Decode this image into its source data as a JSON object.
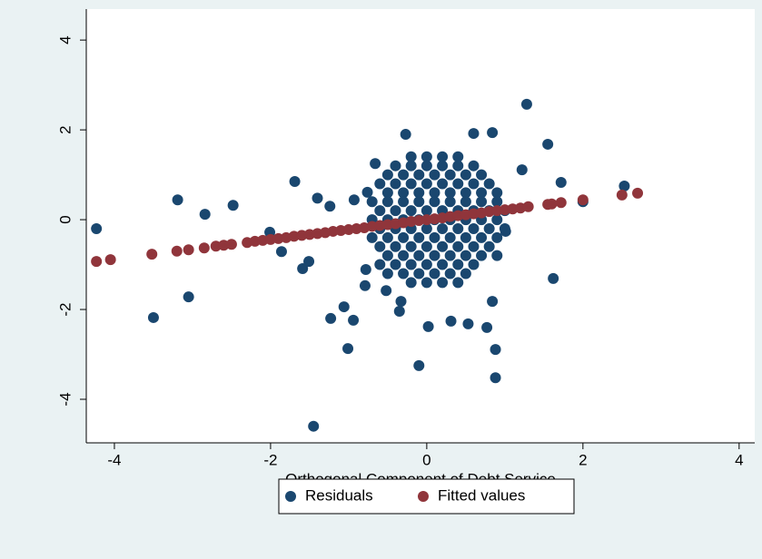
{
  "chart_data": {
    "type": "scatter",
    "x_label": "Orthogonal Component of Debt Service",
    "xlim": [
      -4.36,
      4.2
    ],
    "ylim": [
      -4.97,
      4.69
    ],
    "xticks": [
      -4,
      -2,
      0,
      2,
      4
    ],
    "yticks": [
      -4,
      -2,
      0,
      2,
      4
    ],
    "grid": false,
    "legend": "bottom",
    "series": [
      {
        "name": "Residuals",
        "color": "#1a476f",
        "x": [
          -4.23,
          -3.19,
          -2.84,
          -3.5,
          -3.05,
          -2.48,
          -1.69,
          -2.01,
          -1.86,
          -1.59,
          -1.45,
          -1.23,
          -1.01,
          -0.94,
          -1.06,
          -1.4,
          -1.24,
          -1.51,
          -0.1,
          1.28,
          0.84,
          1.55,
          2.53,
          1.62,
          0.88,
          0.88,
          0.84,
          0.31,
          0.02,
          0.53,
          0.77,
          2.0,
          1.72,
          1.22,
          0.6,
          -0.27,
          -0.66,
          1.01,
          -0.35,
          -0.33,
          -0.78,
          -0.79,
          -0.52,
          -0.76,
          -0.93,
          -0.2,
          0,
          0.2,
          0.4,
          -0.4,
          -0.2,
          0,
          0.2,
          0.4,
          0.6,
          -0.5,
          -0.3,
          -0.1,
          0.1,
          0.3,
          0.5,
          0.7,
          -0.6,
          -0.4,
          -0.2,
          0,
          0.2,
          0.4,
          0.6,
          0.8,
          -0.5,
          -0.3,
          -0.1,
          0.1,
          0.3,
          0.5,
          0.7,
          0.9,
          -0.7,
          -0.5,
          -0.3,
          -0.1,
          0.1,
          0.3,
          0.5,
          0.7,
          0.9,
          -0.6,
          -0.4,
          -0.2,
          0,
          0.2,
          0.4,
          0.6,
          0.8,
          1.0,
          -0.7,
          -0.5,
          -0.3,
          -0.1,
          0.1,
          0.3,
          0.5,
          0.7,
          0.9,
          -0.6,
          -0.4,
          -0.2,
          0,
          0.2,
          0.4,
          0.6,
          0.8,
          1.0,
          -0.7,
          -0.5,
          -0.3,
          -0.1,
          0.1,
          0.3,
          0.5,
          0.7,
          0.9,
          -0.6,
          -0.4,
          -0.2,
          0,
          0.2,
          0.4,
          0.6,
          0.8,
          -0.5,
          -0.3,
          -0.1,
          0.1,
          0.3,
          0.5,
          0.7,
          0.9,
          -0.6,
          -0.4,
          -0.2,
          0,
          0.2,
          0.4,
          0.6,
          -0.5,
          -0.3,
          -0.1,
          0.1,
          0.3,
          0.5,
          -0.2,
          0,
          0.2,
          0.4
        ],
        "values": [
          -0.2,
          0.44,
          0.12,
          -2.18,
          -1.72,
          0.32,
          0.85,
          -0.28,
          -0.71,
          -1.09,
          -4.6,
          -2.2,
          -2.87,
          -2.24,
          -1.94,
          0.48,
          0.3,
          -0.93,
          -3.25,
          2.57,
          1.94,
          1.68,
          0.75,
          -1.31,
          -3.52,
          -2.89,
          -1.82,
          -2.26,
          -2.38,
          -2.32,
          -2.4,
          0.4,
          0.83,
          1.11,
          1.92,
          1.9,
          1.25,
          -0.26,
          -2.04,
          -1.82,
          -1.11,
          -1.47,
          -1.58,
          0.61,
          0.44,
          1.4,
          1.4,
          1.4,
          1.4,
          1.2,
          1.2,
          1.2,
          1.2,
          1.2,
          1.2,
          1.0,
          1.0,
          1.0,
          1.0,
          1.0,
          1.0,
          1.0,
          0.8,
          0.8,
          0.8,
          0.8,
          0.8,
          0.8,
          0.8,
          0.8,
          0.6,
          0.6,
          0.6,
          0.6,
          0.6,
          0.6,
          0.6,
          0.6,
          0.4,
          0.4,
          0.4,
          0.4,
          0.4,
          0.4,
          0.4,
          0.4,
          0.4,
          0.2,
          0.2,
          0.2,
          0.2,
          0.2,
          0.2,
          0.2,
          0.2,
          0.2,
          0,
          0,
          0,
          0,
          0,
          0,
          0,
          0,
          0,
          -0.2,
          -0.2,
          -0.2,
          -0.2,
          -0.2,
          -0.2,
          -0.2,
          -0.2,
          -0.2,
          -0.4,
          -0.4,
          -0.4,
          -0.4,
          -0.4,
          -0.4,
          -0.4,
          -0.4,
          -0.4,
          -0.6,
          -0.6,
          -0.6,
          -0.6,
          -0.6,
          -0.6,
          -0.6,
          -0.6,
          -0.8,
          -0.8,
          -0.8,
          -0.8,
          -0.8,
          -0.8,
          -0.8,
          -0.8,
          -1.0,
          -1.0,
          -1.0,
          -1.0,
          -1.0,
          -1.0,
          -1.0,
          -1.2,
          -1.2,
          -1.2,
          -1.2,
          -1.2,
          -1.2,
          -1.4,
          -1.4,
          -1.4,
          -1.4
        ]
      },
      {
        "name": "Fitted values",
        "color": "#90353b",
        "x": [
          -4.23,
          -4.05,
          -3.52,
          -3.2,
          -3.05,
          -2.85,
          -2.7,
          -2.6,
          -2.5,
          -2.3,
          -2.2,
          -2.1,
          -2.0,
          -1.9,
          -1.8,
          -1.7,
          -1.6,
          -1.5,
          -1.4,
          -1.3,
          -1.2,
          -1.1,
          -1.0,
          -0.9,
          -0.8,
          -0.7,
          -0.6,
          -0.5,
          -0.4,
          -0.3,
          -0.2,
          -0.1,
          0,
          0.1,
          0.2,
          0.3,
          0.4,
          0.5,
          0.6,
          0.7,
          0.8,
          0.9,
          1.0,
          1.1,
          1.2,
          1.3,
          1.55,
          1.6,
          1.72,
          2.0,
          2.5,
          2.7
        ],
        "values": [
          -0.93,
          -0.89,
          -0.77,
          -0.7,
          -0.67,
          -0.63,
          -0.59,
          -0.57,
          -0.55,
          -0.51,
          -0.48,
          -0.46,
          -0.44,
          -0.42,
          -0.4,
          -0.37,
          -0.35,
          -0.33,
          -0.31,
          -0.29,
          -0.26,
          -0.24,
          -0.22,
          -0.2,
          -0.18,
          -0.15,
          -0.13,
          -0.11,
          -0.09,
          -0.07,
          -0.04,
          -0.02,
          0,
          0.02,
          0.04,
          0.07,
          0.09,
          0.11,
          0.13,
          0.15,
          0.18,
          0.2,
          0.22,
          0.24,
          0.26,
          0.29,
          0.34,
          0.35,
          0.38,
          0.44,
          0.55,
          0.59
        ]
      }
    ]
  }
}
